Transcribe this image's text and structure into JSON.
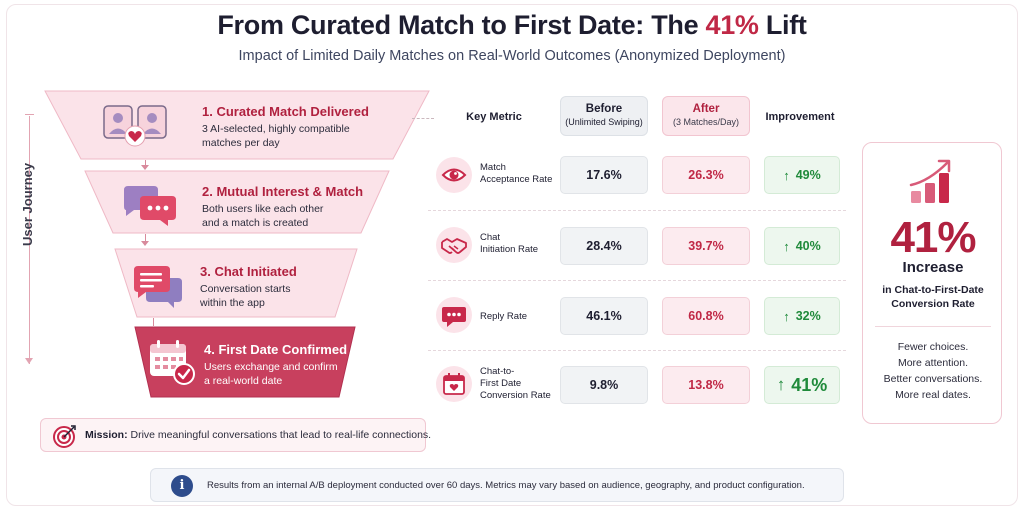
{
  "header": {
    "title_prefix": "From Curated Match to First Date: The ",
    "title_accent": "41%",
    "title_suffix": " Lift",
    "subtitle": "Impact of Limited Daily Matches on Real-World Outcomes (Anonymized Deployment)"
  },
  "journey": {
    "label": "User Journey",
    "stages": [
      {
        "title": "1. Curated Match Delivered",
        "desc_1": "3 AI-selected, highly compatible",
        "desc_2": "matches per day",
        "icon": "profile-match-icon"
      },
      {
        "title": "2. Mutual Interest & Match",
        "desc_1": "Both users like each other",
        "desc_2": "and a match is created",
        "icon": "chat-bubbles-icon"
      },
      {
        "title": "3. Chat Initiated",
        "desc_1": "Conversation starts",
        "desc_2": "within the app",
        "icon": "message-icon"
      },
      {
        "title": "4. First Date Confirmed",
        "desc_1": "Users exchange and confirm",
        "desc_2": "a real-world date",
        "icon": "calendar-check-icon"
      }
    ]
  },
  "mission": {
    "label": "Mission:",
    "text": " Drive meaningful conversations that lead to real-life connections."
  },
  "table": {
    "headers": {
      "metric": "Key Metric",
      "before": "Before",
      "before_sub": "(Unlimited Swiping)",
      "after": "After",
      "after_sub": "(3 Matches/Day)",
      "improvement": "Improvement"
    },
    "rows": [
      {
        "label_1": "Match",
        "label_2": "Acceptance Rate",
        "label_3": "",
        "before": "17.6%",
        "after": "26.3%",
        "improvement": "49%",
        "icon": "eye-icon"
      },
      {
        "label_1": "Chat",
        "label_2": "Initiation Rate",
        "label_3": "",
        "before": "28.4%",
        "after": "39.7%",
        "improvement": "40%",
        "icon": "handshake-icon"
      },
      {
        "label_1": "Reply Rate",
        "label_2": "",
        "label_3": "",
        "before": "46.1%",
        "after": "60.8%",
        "improvement": "32%",
        "icon": "reply-bubble-icon"
      },
      {
        "label_1": "Chat-to-",
        "label_2": "First Date",
        "label_3": "Conversion Rate",
        "before": "9.8%",
        "after": "13.8%",
        "improvement": "41%",
        "icon": "calendar-heart-icon"
      }
    ]
  },
  "summary": {
    "value": "41%",
    "label": "Increase",
    "sub_1": "in Chat-to-First-Date",
    "sub_2": "Conversion Rate",
    "tagline": [
      "Fewer choices.",
      "More attention.",
      "Better conversations.",
      "More real dates."
    ],
    "icon": "growth-chart-icon"
  },
  "footer": {
    "text": "Results from an internal A/B deployment conducted over 60 days. Metrics may vary based on audience, geography, and product configuration."
  },
  "colors": {
    "accent": "#c02846",
    "positive": "#1f8a3a",
    "info": "#2e4c8c"
  }
}
